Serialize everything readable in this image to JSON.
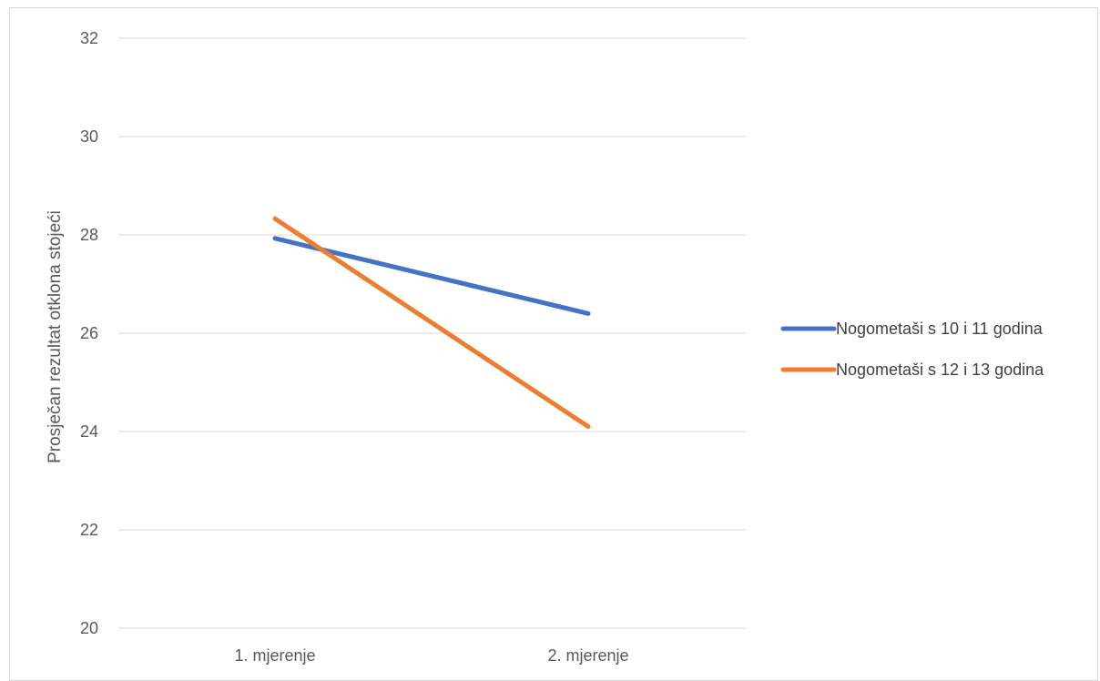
{
  "chart_data": {
    "type": "line",
    "title": "",
    "xlabel": "",
    "ylabel": "Prosječan rezultat otklona stojeći",
    "categories": [
      "1. mjerenje",
      "2. mjerenje"
    ],
    "ylim": [
      20,
      32
    ],
    "yticks": [
      20,
      22,
      24,
      26,
      28,
      30,
      32
    ],
    "grid": true,
    "legend_position": "right",
    "series": [
      {
        "name": "Nogometaši s 10 i 11 godina",
        "values": [
          27.93,
          26.4
        ],
        "color": "#4472C4"
      },
      {
        "name": "Nogometaši s 12 i 13 godina",
        "values": [
          28.33,
          24.1
        ],
        "color": "#ED7D31"
      }
    ]
  }
}
